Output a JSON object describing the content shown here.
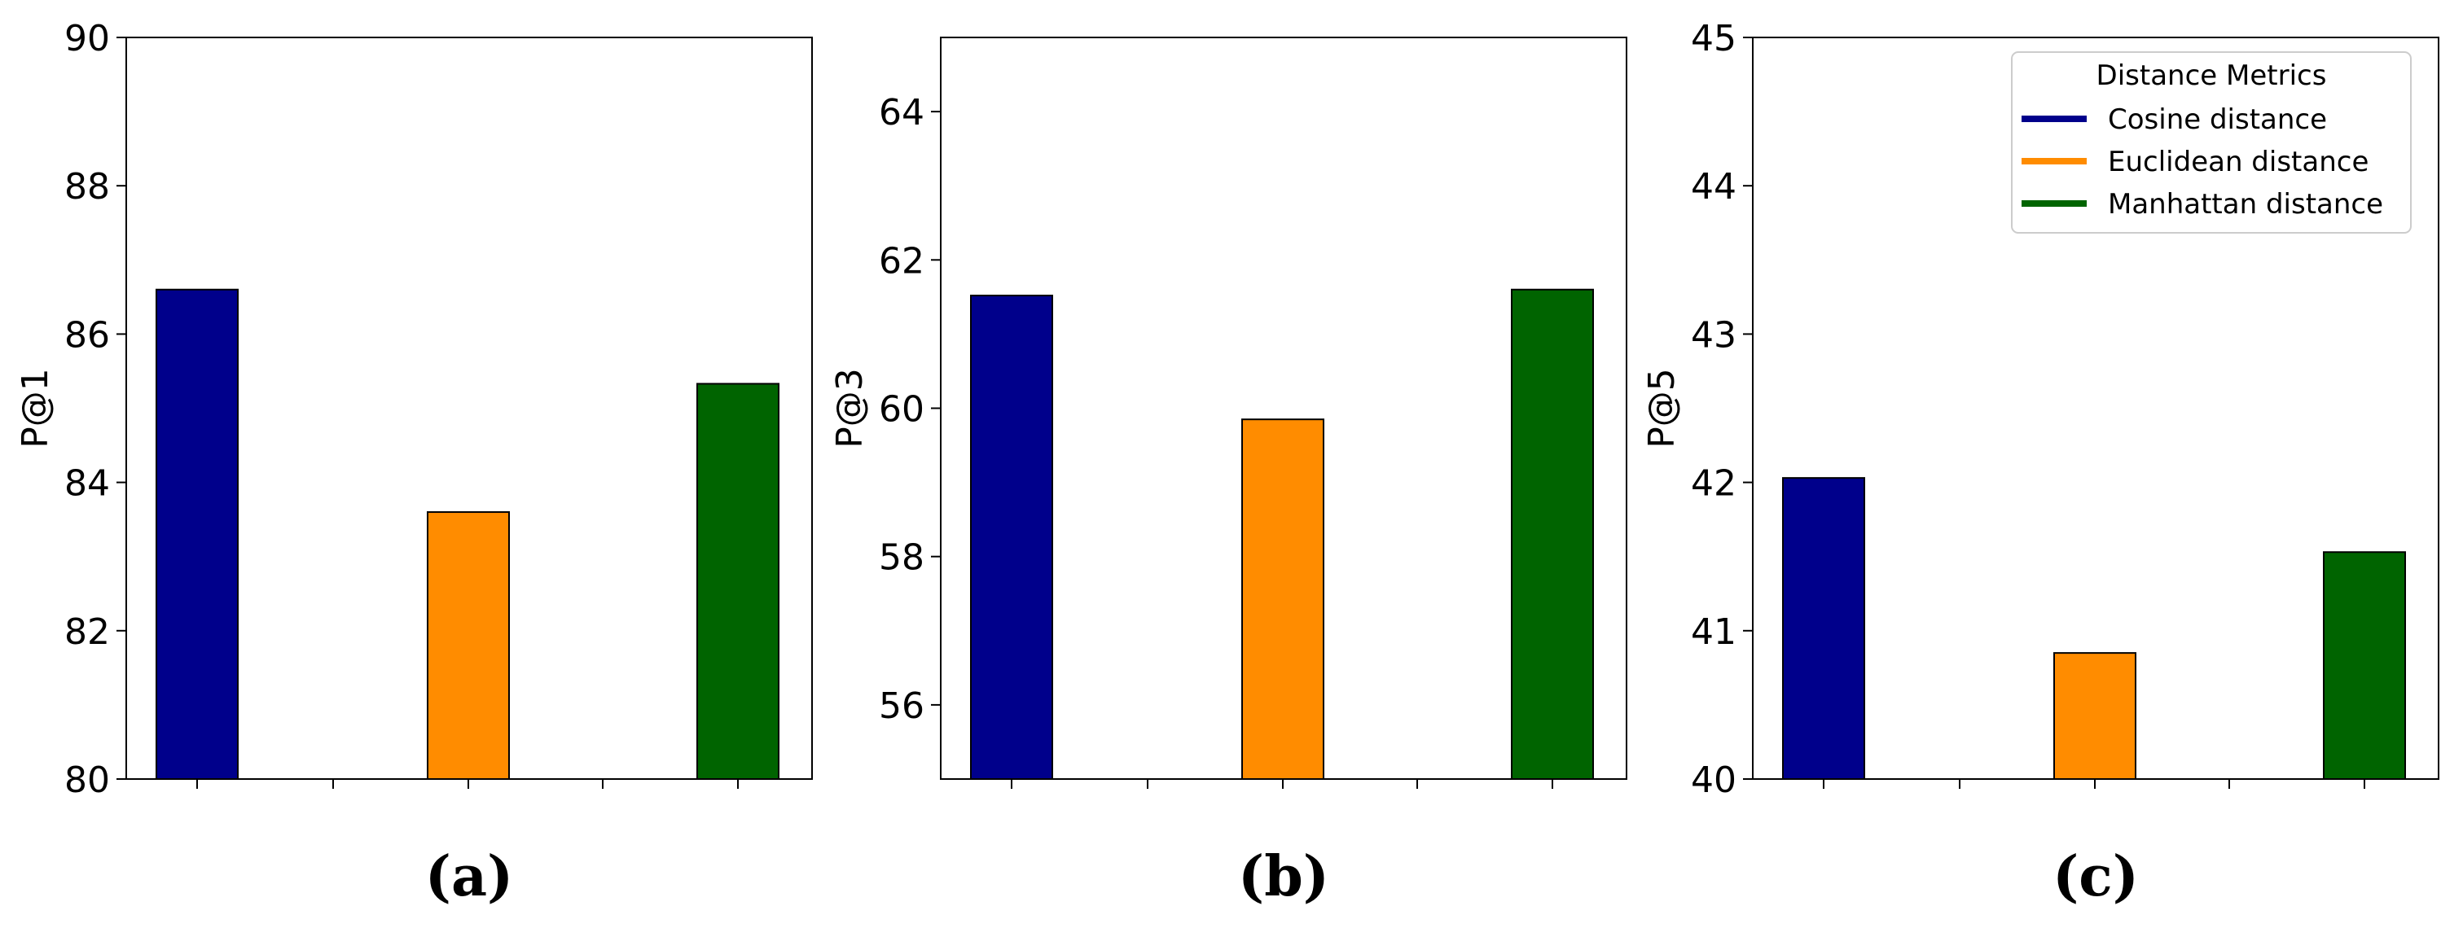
{
  "colors": {
    "cosine": "#00008B",
    "euclidean": "#FF8C00",
    "manhattan": "#006400",
    "axis": "#000000",
    "background": "#FFFFFF"
  },
  "legend": {
    "title": "Distance Metrics",
    "placement": "top-right",
    "entries": [
      {
        "name": "Cosine distance",
        "color": "#00008B"
      },
      {
        "name": "Euclidean distance",
        "color": "#FF8C00"
      },
      {
        "name": "Manhattan distance",
        "color": "#006400"
      }
    ]
  },
  "chart_data": [
    {
      "type": "bar",
      "caption": "(a)",
      "ylabel": "P@1",
      "ylim": [
        80,
        90
      ],
      "yticks": [
        80,
        82,
        84,
        86,
        88,
        90
      ],
      "grid": false,
      "categories": [
        "Cosine distance",
        "Euclidean distance",
        "Manhattan distance"
      ],
      "values": [
        86.6,
        83.6,
        85.33
      ]
    },
    {
      "type": "bar",
      "caption": "(b)",
      "ylabel": "P@3",
      "ylim": [
        55,
        65
      ],
      "yticks": [
        56,
        58,
        60,
        62,
        64
      ],
      "grid": false,
      "categories": [
        "Cosine distance",
        "Euclidean distance",
        "Manhattan distance"
      ],
      "values": [
        61.52,
        59.85,
        61.6
      ]
    },
    {
      "type": "bar",
      "caption": "(c)",
      "ylabel": "P@5",
      "ylim": [
        40,
        45
      ],
      "yticks": [
        40,
        41,
        42,
        43,
        44,
        45
      ],
      "grid": false,
      "categories": [
        "Cosine distance",
        "Euclidean distance",
        "Manhattan distance"
      ],
      "values": [
        42.03,
        40.85,
        41.53
      ]
    }
  ]
}
